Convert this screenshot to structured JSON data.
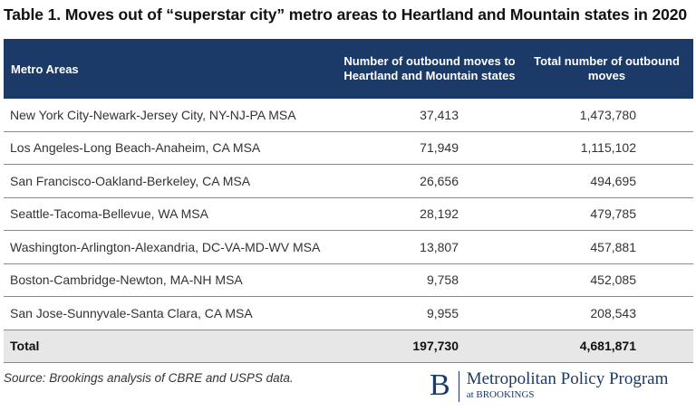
{
  "title": "Table 1. Moves out of “superstar city” metro areas to Heartland and Mountain states in 2020",
  "chart_data": {
    "type": "table",
    "columns": [
      "Metro Areas",
      "Number of outbound moves to Heartland and Mountain states",
      "Total number of outbound moves"
    ],
    "rows": [
      {
        "metro": "New York City-Newark-Jersey City, NY-NJ-PA MSA",
        "heartland": "37,413",
        "total": "1,473,780"
      },
      {
        "metro": "Los Angeles-Long Beach-Anaheim, CA MSA",
        "heartland": "71,949",
        "total": "1,115,102"
      },
      {
        "metro": "San Francisco-Oakland-Berkeley, CA MSA",
        "heartland": "26,656",
        "total": "494,695"
      },
      {
        "metro": "Seattle-Tacoma-Bellevue, WA MSA",
        "heartland": "28,192",
        "total": "479,785"
      },
      {
        "metro": "Washington-Arlington-Alexandria, DC-VA-MD-WV MSA",
        "heartland": "13,807",
        "total": "457,881"
      },
      {
        "metro": "Boston-Cambridge-Newton, MA-NH MSA",
        "heartland": "9,758",
        "total": "452,085"
      },
      {
        "metro": "San Jose-Sunnyvale-Santa Clara, CA MSA",
        "heartland": "9,955",
        "total": "208,543"
      }
    ],
    "total_row": {
      "label": "Total",
      "heartland": "197,730",
      "total": "4,681,871"
    }
  },
  "source": "Source: Brookings analysis of CBRE and USPS data.",
  "logo": {
    "mark": "B",
    "name": "Metropolitan Policy Program",
    "sub": "at BROOKINGS"
  },
  "colors": {
    "header_bg": "#1b3a67",
    "total_bg": "#e7e7e7",
    "brand": "#1b3a67"
  }
}
